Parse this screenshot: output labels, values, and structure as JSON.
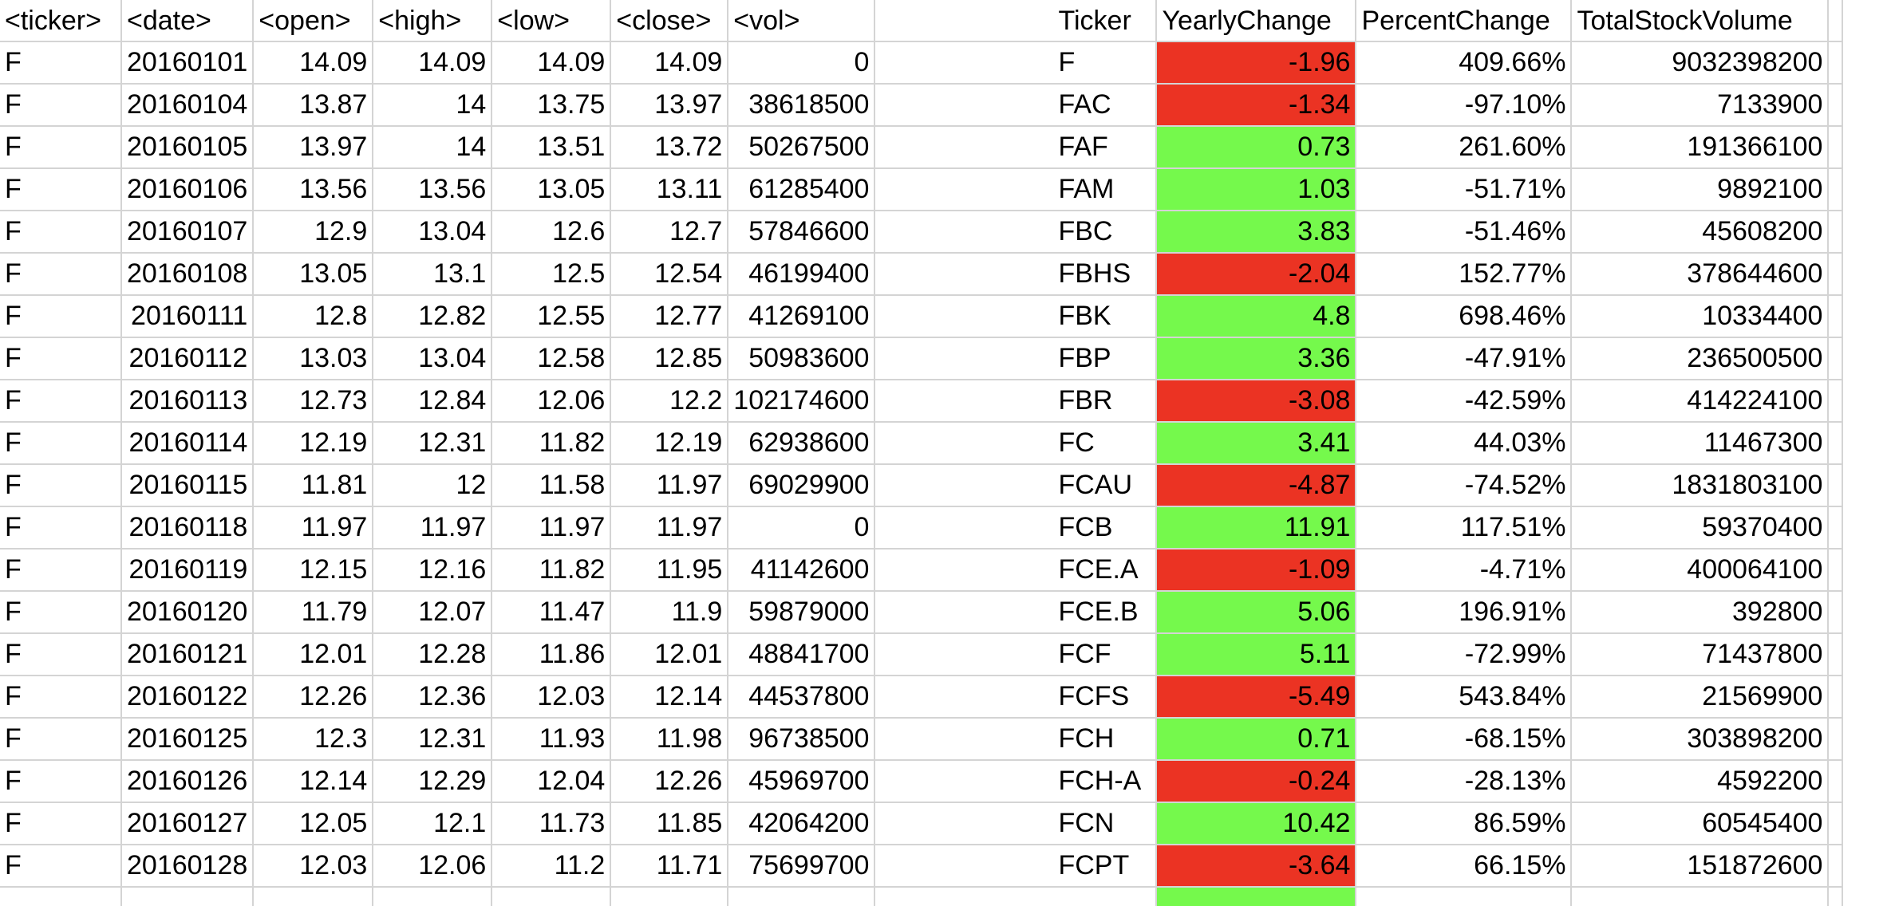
{
  "colors": {
    "positive_fill": "#75f94c",
    "negative_fill": "#eb3323",
    "gridline": "#d4d4d4"
  },
  "data_table": {
    "headers": [
      "<ticker>",
      "<date>",
      "<open>",
      "<high>",
      "<low>",
      "<close>",
      "<vol>"
    ],
    "rows": [
      [
        "F",
        "20160101",
        "14.09",
        "14.09",
        "14.09",
        "14.09",
        "0"
      ],
      [
        "F",
        "20160104",
        "13.87",
        "14",
        "13.75",
        "13.97",
        "38618500"
      ],
      [
        "F",
        "20160105",
        "13.97",
        "14",
        "13.51",
        "13.72",
        "50267500"
      ],
      [
        "F",
        "20160106",
        "13.56",
        "13.56",
        "13.05",
        "13.11",
        "61285400"
      ],
      [
        "F",
        "20160107",
        "12.9",
        "13.04",
        "12.6",
        "12.7",
        "57846600"
      ],
      [
        "F",
        "20160108",
        "13.05",
        "13.1",
        "12.5",
        "12.54",
        "46199400"
      ],
      [
        "F",
        "20160111",
        "12.8",
        "12.82",
        "12.55",
        "12.77",
        "41269100"
      ],
      [
        "F",
        "20160112",
        "13.03",
        "13.04",
        "12.58",
        "12.85",
        "50983600"
      ],
      [
        "F",
        "20160113",
        "12.73",
        "12.84",
        "12.06",
        "12.2",
        "102174600"
      ],
      [
        "F",
        "20160114",
        "12.19",
        "12.31",
        "11.82",
        "12.19",
        "62938600"
      ],
      [
        "F",
        "20160115",
        "11.81",
        "12",
        "11.58",
        "11.97",
        "69029900"
      ],
      [
        "F",
        "20160118",
        "11.97",
        "11.97",
        "11.97",
        "11.97",
        "0"
      ],
      [
        "F",
        "20160119",
        "12.15",
        "12.16",
        "11.82",
        "11.95",
        "41142600"
      ],
      [
        "F",
        "20160120",
        "11.79",
        "12.07",
        "11.47",
        "11.9",
        "59879000"
      ],
      [
        "F",
        "20160121",
        "12.01",
        "12.28",
        "11.86",
        "12.01",
        "48841700"
      ],
      [
        "F",
        "20160122",
        "12.26",
        "12.36",
        "12.03",
        "12.14",
        "44537800"
      ],
      [
        "F",
        "20160125",
        "12.3",
        "12.31",
        "11.93",
        "11.98",
        "96738500"
      ],
      [
        "F",
        "20160126",
        "12.14",
        "12.29",
        "12.04",
        "12.26",
        "45969700"
      ],
      [
        "F",
        "20160127",
        "12.05",
        "12.1",
        "11.73",
        "11.85",
        "42064200"
      ],
      [
        "F",
        "20160128",
        "12.03",
        "12.06",
        "11.2",
        "11.71",
        "75699700"
      ]
    ]
  },
  "summary_table": {
    "headers": [
      "Ticker",
      "YearlyChange",
      "PercentChange",
      "TotalStockVolume"
    ],
    "rows": [
      {
        "ticker": "F",
        "yearly_change": "-1.96",
        "trend": "negative",
        "percent_change": "409.66%",
        "total_volume": "9032398200"
      },
      {
        "ticker": "FAC",
        "yearly_change": "-1.34",
        "trend": "negative",
        "percent_change": "-97.10%",
        "total_volume": "7133900"
      },
      {
        "ticker": "FAF",
        "yearly_change": "0.73",
        "trend": "positive",
        "percent_change": "261.60%",
        "total_volume": "191366100"
      },
      {
        "ticker": "FAM",
        "yearly_change": "1.03",
        "trend": "positive",
        "percent_change": "-51.71%",
        "total_volume": "9892100"
      },
      {
        "ticker": "FBC",
        "yearly_change": "3.83",
        "trend": "positive",
        "percent_change": "-51.46%",
        "total_volume": "45608200"
      },
      {
        "ticker": "FBHS",
        "yearly_change": "-2.04",
        "trend": "negative",
        "percent_change": "152.77%",
        "total_volume": "378644600"
      },
      {
        "ticker": "FBK",
        "yearly_change": "4.8",
        "trend": "positive",
        "percent_change": "698.46%",
        "total_volume": "10334400"
      },
      {
        "ticker": "FBP",
        "yearly_change": "3.36",
        "trend": "positive",
        "percent_change": "-47.91%",
        "total_volume": "236500500"
      },
      {
        "ticker": "FBR",
        "yearly_change": "-3.08",
        "trend": "negative",
        "percent_change": "-42.59%",
        "total_volume": "414224100"
      },
      {
        "ticker": "FC",
        "yearly_change": "3.41",
        "trend": "positive",
        "percent_change": "44.03%",
        "total_volume": "11467300"
      },
      {
        "ticker": "FCAU",
        "yearly_change": "-4.87",
        "trend": "negative",
        "percent_change": "-74.52%",
        "total_volume": "1831803100"
      },
      {
        "ticker": "FCB",
        "yearly_change": "11.91",
        "trend": "positive",
        "percent_change": "117.51%",
        "total_volume": "59370400"
      },
      {
        "ticker": "FCE.A",
        "yearly_change": "-1.09",
        "trend": "negative",
        "percent_change": "-4.71%",
        "total_volume": "400064100"
      },
      {
        "ticker": "FCE.B",
        "yearly_change": "5.06",
        "trend": "positive",
        "percent_change": "196.91%",
        "total_volume": "392800"
      },
      {
        "ticker": "FCF",
        "yearly_change": "5.11",
        "trend": "positive",
        "percent_change": "-72.99%",
        "total_volume": "71437800"
      },
      {
        "ticker": "FCFS",
        "yearly_change": "-5.49",
        "trend": "negative",
        "percent_change": "543.84%",
        "total_volume": "21569900"
      },
      {
        "ticker": "FCH",
        "yearly_change": "0.71",
        "trend": "positive",
        "percent_change": "-68.15%",
        "total_volume": "303898200"
      },
      {
        "ticker": "FCH-A",
        "yearly_change": "-0.24",
        "trend": "negative",
        "percent_change": "-28.13%",
        "total_volume": "4592200"
      },
      {
        "ticker": "FCN",
        "yearly_change": "10.42",
        "trend": "positive",
        "percent_change": "86.59%",
        "total_volume": "60545400"
      },
      {
        "ticker": "FCPT",
        "yearly_change": "-3.64",
        "trend": "negative",
        "percent_change": "66.15%",
        "total_volume": "151872600"
      }
    ],
    "partial_next_row_trend": "positive"
  }
}
